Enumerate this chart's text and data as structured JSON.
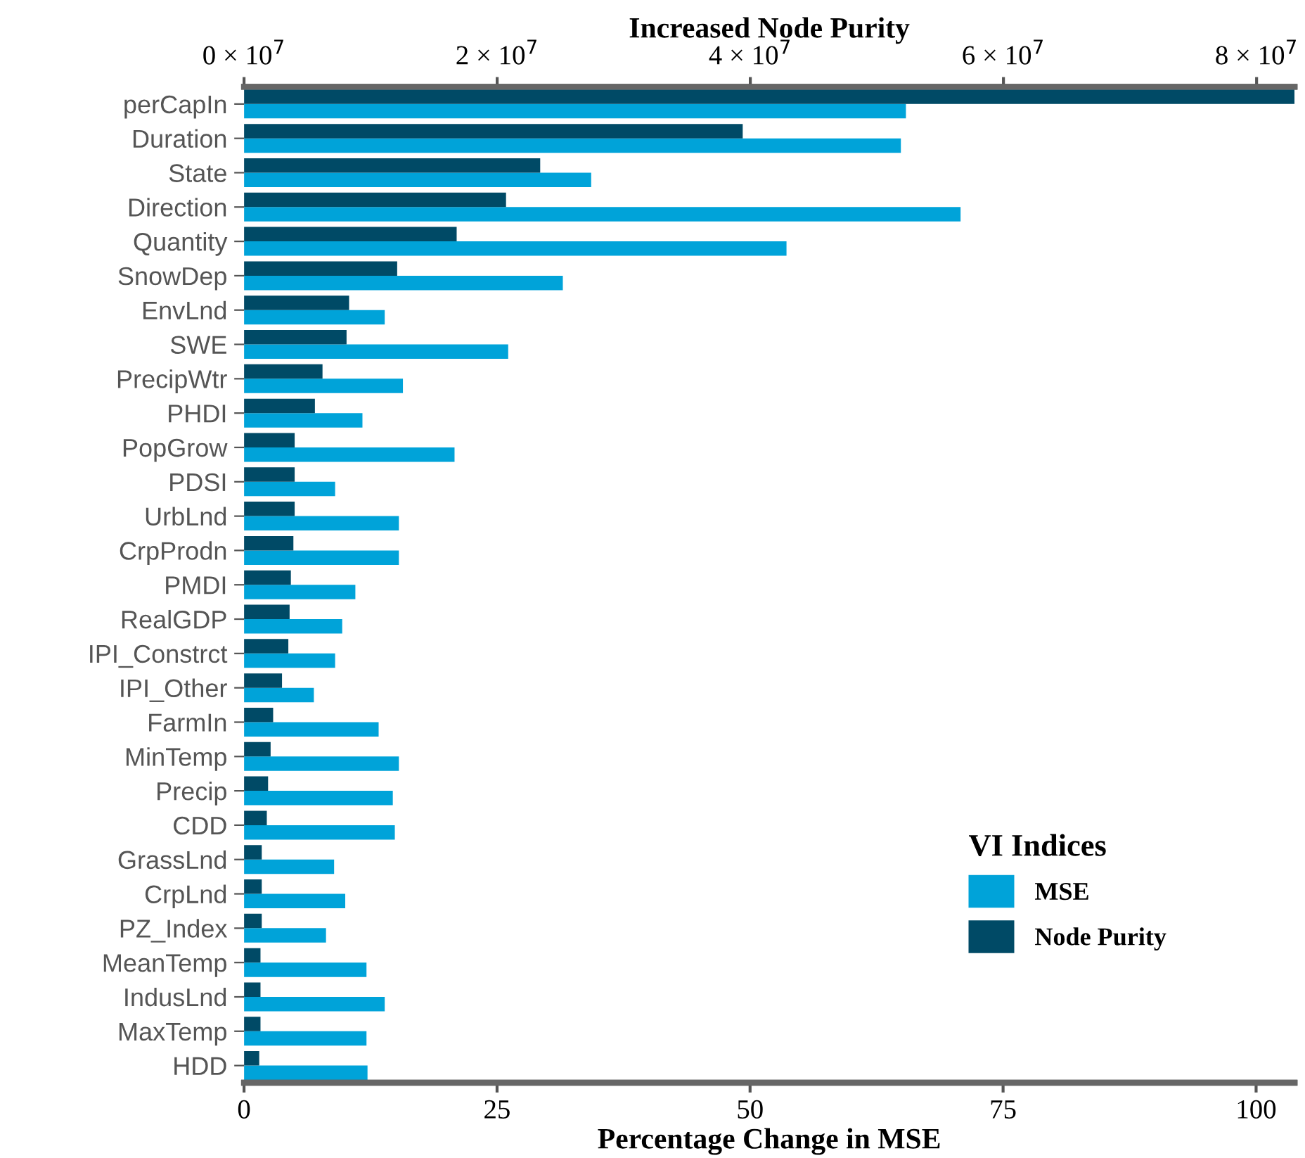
{
  "chart_data": {
    "type": "bar",
    "orientation": "horizontal",
    "xlabel": "Percentage Change in MSE",
    "x2label": "Increased Node Purity",
    "legend_title": "VI Indices",
    "legend": "bottom right",
    "grid": false,
    "categories": [
      "perCapIn",
      "Duration",
      "State",
      "Direction",
      "Quantity",
      "SnowDep",
      "EnvLnd",
      "SWE",
      "PrecipWtr",
      "PHDI",
      "PopGrow",
      "PDSI",
      "UrbLnd",
      "CrpProdn",
      "PMDI",
      "RealGDP",
      "IPI_Constrct",
      "IPI_Other",
      "FarmIn",
      "MinTemp",
      "Precip",
      "CDD",
      "GrassLnd",
      "CrpLnd",
      "PZ_Index",
      "MeanTemp",
      "IndusLnd",
      "MaxTemp",
      "HDD"
    ],
    "xlim": [
      0,
      103.8
    ],
    "xticks": [
      0,
      25,
      50,
      75,
      100
    ],
    "x2lim": [
      0,
      83000000
    ],
    "x2ticks": [
      {
        "value": 0,
        "label": "0 × 10$^{7}$"
      },
      {
        "value": 20000000,
        "label": "2 × 10$^{7}$"
      },
      {
        "value": 40000000,
        "label": "4 × 10$^{7}$"
      },
      {
        "value": 60000000,
        "label": "6 × 10$^{7}$"
      },
      {
        "value": 80000000,
        "label": "8 × 10$^{7}$"
      }
    ],
    "series": [
      {
        "name": "MSE",
        "color": "#00a3d9",
        "values": [
          65.4,
          64.9,
          34.3,
          70.8,
          53.6,
          31.5,
          13.9,
          26.1,
          15.7,
          11.7,
          20.8,
          9.0,
          15.3,
          15.3,
          11.0,
          9.7,
          9.0,
          6.9,
          13.3,
          15.3,
          14.7,
          14.9,
          8.9,
          10.0,
          8.1,
          12.1,
          13.9,
          12.1,
          12.2
        ]
      },
      {
        "name": "Node Purity",
        "color": "#004a66",
        "axis": "x2",
        "values": [
          83000000,
          39400000,
          23400000,
          20700000,
          16800000,
          12100000,
          8300000,
          8100000,
          6200000,
          5600000,
          4000000,
          4000000,
          4000000,
          3900000,
          3700000,
          3600000,
          3500000,
          3000000,
          2300000,
          2100000,
          1900000,
          1800000,
          1400000,
          1400000,
          1400000,
          1300000,
          1300000,
          1300000,
          1200000
        ]
      }
    ]
  }
}
